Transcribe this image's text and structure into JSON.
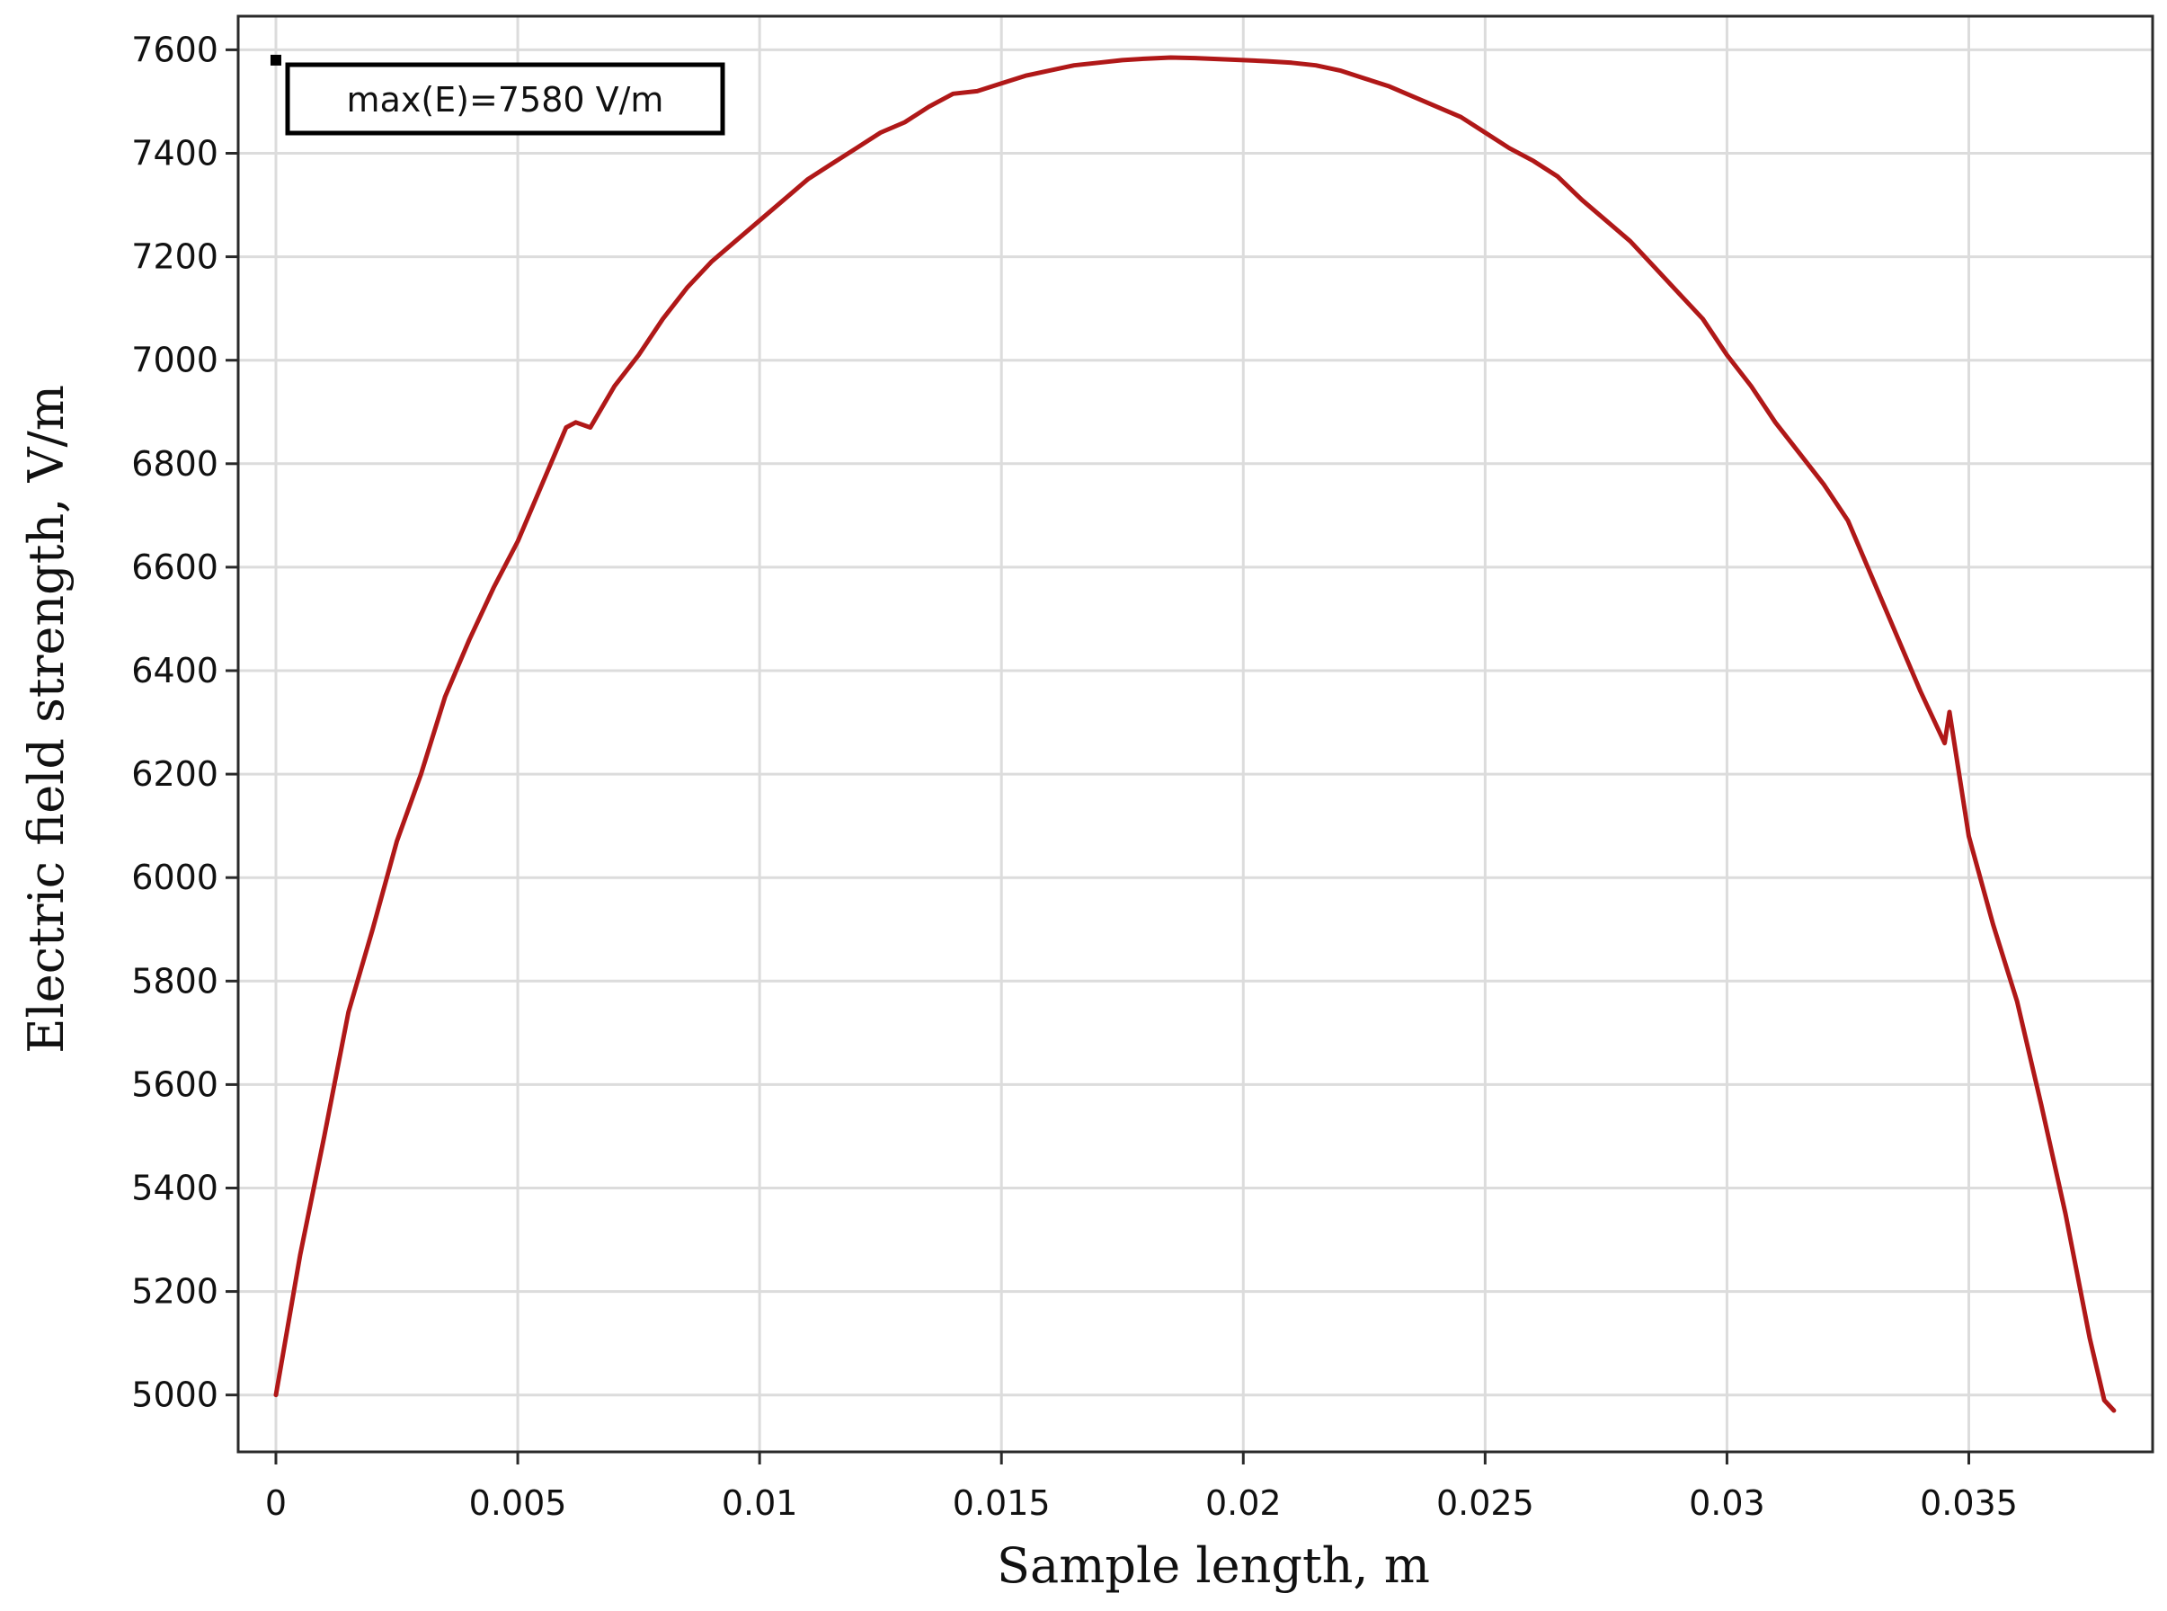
{
  "chart_data": {
    "type": "line",
    "title": "",
    "xlabel": "Sample length, m",
    "ylabel": "Electric field strength, V/m",
    "xlim": [
      -0.00078,
      0.0388
    ],
    "ylim": [
      4890,
      7665
    ],
    "grid": true,
    "x_ticks": [
      0,
      0.005,
      0.01,
      0.015,
      0.02,
      0.025,
      0.03,
      0.035
    ],
    "x_tick_labels": [
      "0",
      "0.005",
      "0.01",
      "0.015",
      "0.02",
      "0.025",
      "0.03",
      "0.035"
    ],
    "y_ticks": [
      5000,
      5200,
      5400,
      5600,
      5800,
      6000,
      6200,
      6400,
      6600,
      6800,
      7000,
      7200,
      7400,
      7600
    ],
    "y_tick_labels": [
      "5000",
      "5200",
      "5400",
      "5600",
      "5800",
      "6000",
      "6200",
      "6400",
      "6600",
      "6800",
      "7000",
      "7200",
      "7400",
      "7600"
    ],
    "annotation": {
      "text": "max(E)=7580 V/m",
      "marker_x": 0,
      "marker_y": 7580
    },
    "series": [
      {
        "color": "#b01818",
        "x": [
          0,
          0.0005,
          0.001,
          0.0015,
          0.002,
          0.0025,
          0.003,
          0.0035,
          0.004,
          0.0045,
          0.005,
          0.0055,
          0.006,
          0.0062,
          0.0065,
          0.007,
          0.0075,
          0.008,
          0.0085,
          0.009,
          0.0095,
          0.01,
          0.0105,
          0.011,
          0.0115,
          0.012,
          0.0125,
          0.013,
          0.0135,
          0.014,
          0.0145,
          0.015,
          0.0155,
          0.016,
          0.0165,
          0.017,
          0.0175,
          0.018,
          0.0185,
          0.019,
          0.0195,
          0.02,
          0.0205,
          0.021,
          0.0215,
          0.022,
          0.0225,
          0.023,
          0.0235,
          0.024,
          0.0245,
          0.025,
          0.0255,
          0.026,
          0.0265,
          0.027,
          0.0275,
          0.028,
          0.0285,
          0.029,
          0.0295,
          0.03,
          0.0305,
          0.031,
          0.0315,
          0.032,
          0.0325,
          0.033,
          0.0335,
          0.034,
          0.0345,
          0.0346,
          0.035,
          0.0355,
          0.036,
          0.0365,
          0.037,
          0.0375,
          0.0378,
          0.038
        ],
        "y": [
          5000,
          5270,
          5500,
          5740,
          5900,
          6070,
          6200,
          6350,
          6460,
          6560,
          6650,
          6760,
          6870,
          6880,
          6870,
          6950,
          7010,
          7080,
          7140,
          7190,
          7230,
          7270,
          7310,
          7350,
          7380,
          7410,
          7440,
          7460,
          7490,
          7515,
          7520,
          7535,
          7550,
          7560,
          7570,
          7575,
          7580,
          7583,
          7585,
          7584,
          7582,
          7580,
          7578,
          7575,
          7570,
          7560,
          7545,
          7530,
          7510,
          7490,
          7470,
          7440,
          7410,
          7385,
          7355,
          7310,
          7270,
          7230,
          7180,
          7130,
          7080,
          7010,
          6950,
          6880,
          6820,
          6760,
          6690,
          6580,
          6470,
          6360,
          6260,
          6320,
          6080,
          5910,
          5760,
          5560,
          5350,
          5110,
          4990,
          4970
        ]
      }
    ]
  }
}
